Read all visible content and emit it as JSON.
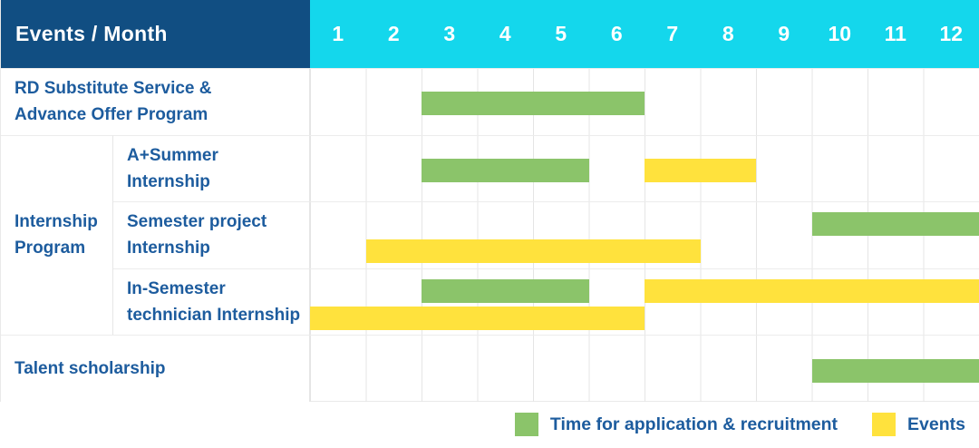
{
  "header": {
    "label": "Events / Month",
    "months": [
      "1",
      "2",
      "3",
      "4",
      "5",
      "6",
      "7",
      "8",
      "9",
      "10",
      "11",
      "12"
    ]
  },
  "colors": {
    "header_blue": "#114e82",
    "header_cyan": "#14d7ec",
    "label_blue": "#1d5c9e",
    "green": "#8bc46a",
    "yellow": "#ffe23d"
  },
  "legend": {
    "items": [
      {
        "color": "green",
        "label": "Time for application & recruitment"
      },
      {
        "color": "yellow",
        "label": "Events"
      }
    ]
  },
  "chart_data": {
    "type": "gantt",
    "title": "Events / Month",
    "x_axis": {
      "label": "Month",
      "ticks": [
        "1",
        "2",
        "3",
        "4",
        "5",
        "6",
        "7",
        "8",
        "9",
        "10",
        "11",
        "12"
      ],
      "range": [
        1,
        12
      ]
    },
    "legend_entries": [
      "Time for application & recruitment",
      "Events"
    ],
    "groups": [
      {
        "id": "internship-program",
        "label_lines": [
          "Internship",
          "Program"
        ],
        "row_indexes": [
          1,
          2,
          3
        ]
      }
    ],
    "rows": [
      {
        "id": "rd-substitute",
        "label": "RD Substitute Service & Advance Offer Program",
        "label_lines": [
          "RD Substitute Service &",
          "Advance Offer Program"
        ],
        "group": null,
        "lanes": [
          [
            {
              "series": "Time for application & recruitment",
              "color": "green",
              "start_month": 3,
              "end_month": 6
            }
          ]
        ]
      },
      {
        "id": "a-plus-summer-internship",
        "label": "A+Summer Internship",
        "label_lines": [
          "A+Summer",
          "Internship"
        ],
        "group": "internship-program",
        "lanes": [
          [
            {
              "series": "Time for application & recruitment",
              "color": "green",
              "start_month": 3,
              "end_month": 5
            },
            {
              "series": "Events",
              "color": "yellow",
              "start_month": 7,
              "end_month": 8
            }
          ]
        ]
      },
      {
        "id": "semester-project-internship",
        "label": "Semester project Internship",
        "label_lines": [
          "Semester project",
          "Internship"
        ],
        "group": "internship-program",
        "lanes": [
          [
            {
              "series": "Time for application & recruitment",
              "color": "green",
              "start_month": 10,
              "end_month": 12
            }
          ],
          [
            {
              "series": "Events",
              "color": "yellow",
              "start_month": 2,
              "end_month": 7
            }
          ]
        ]
      },
      {
        "id": "in-semester-technician-internship",
        "label": "In-Semester technician Internship",
        "label_lines": [
          "In-Semester",
          "technician Internship"
        ],
        "group": "internship-program",
        "lanes": [
          [
            {
              "series": "Time for application & recruitment",
              "color": "green",
              "start_month": 3,
              "end_month": 5
            },
            {
              "series": "Events",
              "color": "yellow",
              "start_month": 7,
              "end_month": 12
            }
          ],
          [
            {
              "series": "Events",
              "color": "yellow",
              "start_month": 1,
              "end_month": 6
            }
          ]
        ]
      },
      {
        "id": "talent-scholarship",
        "label": "Talent scholarship",
        "label_lines": [
          "Talent scholarship"
        ],
        "group": null,
        "lanes": [
          [
            {
              "series": "Time for application & recruitment",
              "color": "green",
              "start_month": 10,
              "end_month": 12
            }
          ]
        ]
      }
    ]
  }
}
